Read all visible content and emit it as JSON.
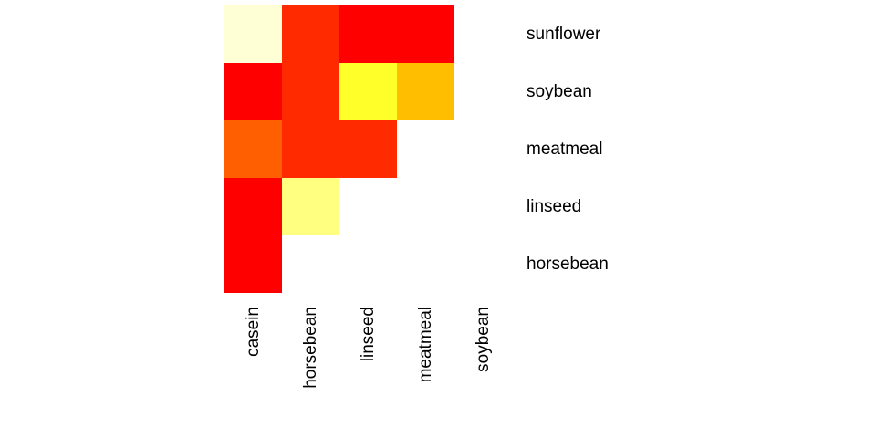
{
  "chart_data": {
    "type": "heatmap",
    "title": "",
    "xlabel": "",
    "ylabel": "",
    "x_categories": [
      "casein",
      "horsebean",
      "linseed",
      "meatmeal",
      "soybean"
    ],
    "y_categories": [
      "sunflower",
      "soybean",
      "meatmeal",
      "linseed",
      "horsebean"
    ],
    "colors": {
      "sunflower": [
        "#ffffd5",
        "#ff2a00",
        "#ff0000",
        "#ff0000",
        null
      ],
      "soybean": [
        "#ff0000",
        "#ff2a00",
        "#ffff2a",
        "#ffbf00",
        null
      ],
      "meatmeal": [
        "#ff5f00",
        "#ff2a00",
        "#ff2a00",
        null,
        null
      ],
      "linseed": [
        "#ff0000",
        "#ffff80",
        null,
        null,
        null
      ],
      "horsebean": [
        "#ff0000",
        null,
        null,
        null,
        null
      ]
    },
    "palette": "heat (red = low, light yellow = high)",
    "lower_triangle_only": true,
    "legend": "none",
    "grid": false
  }
}
